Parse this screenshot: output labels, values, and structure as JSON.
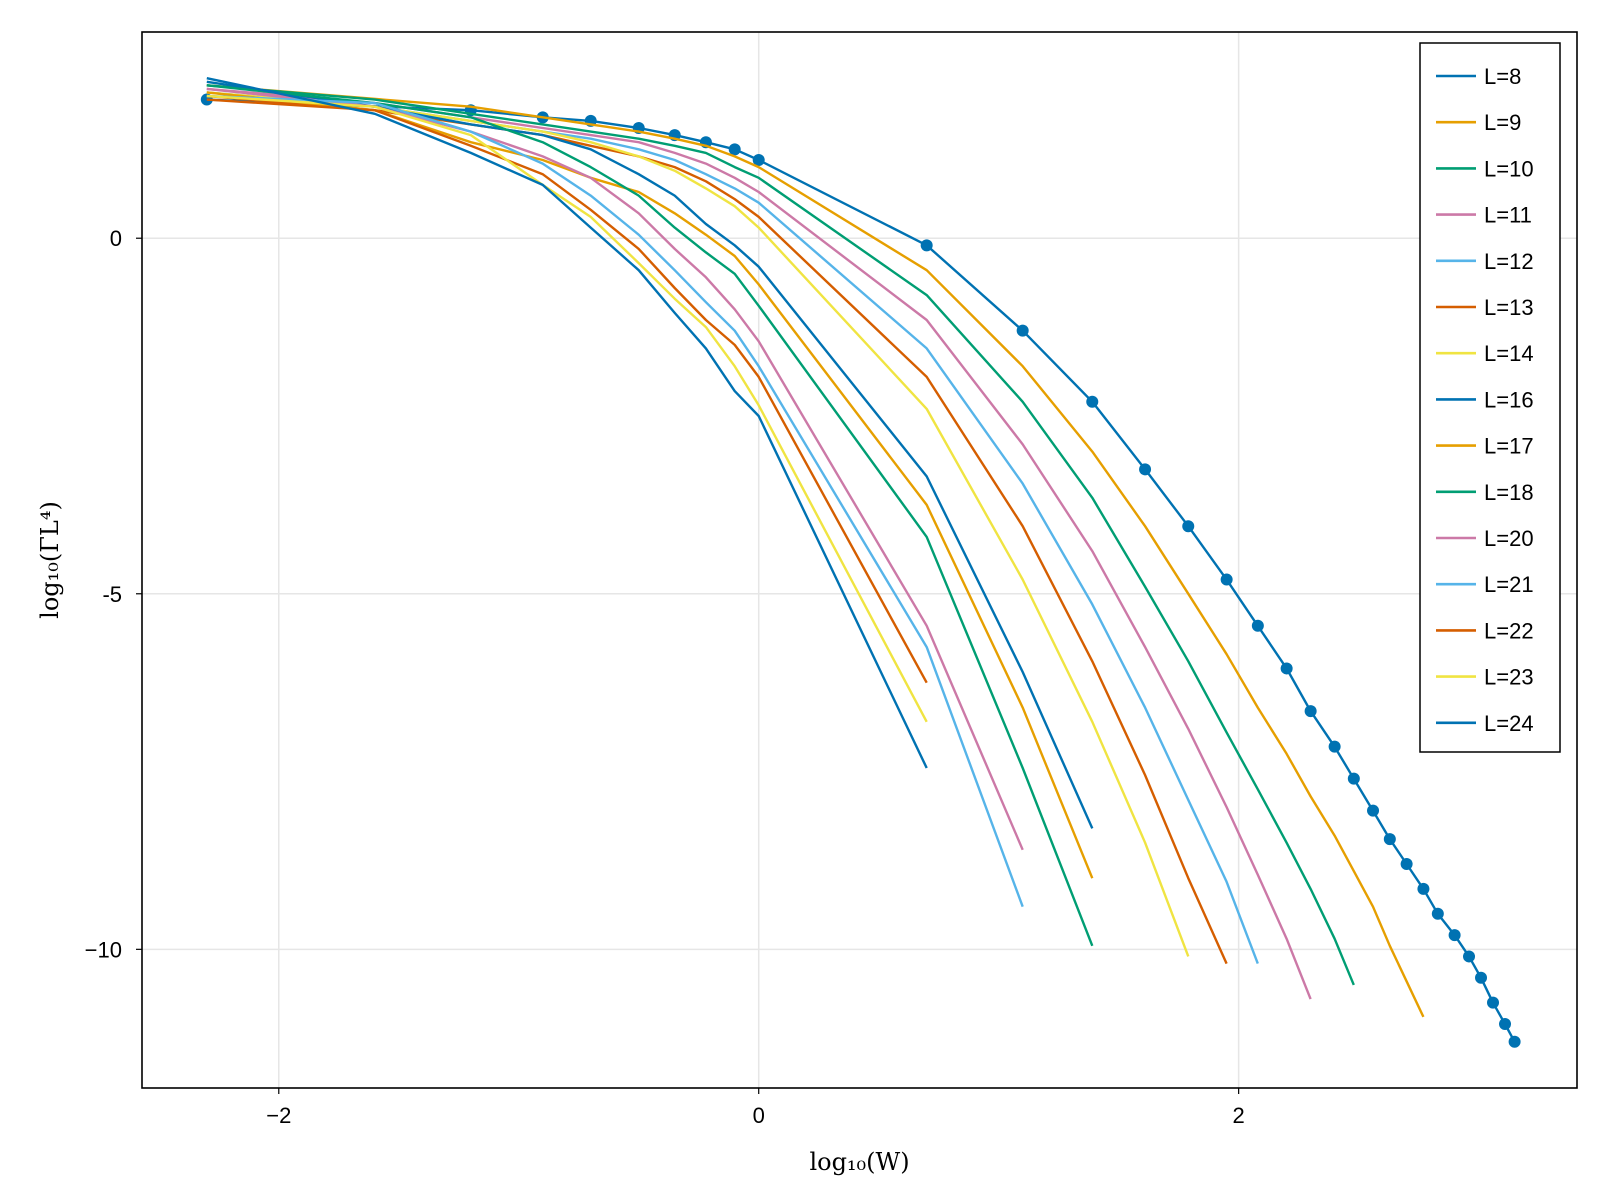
{
  "chart_data": {
    "type": "line",
    "title": "",
    "xlabel": "log₁₀(W)",
    "ylabel": "log₁₀(ΓL⁴)",
    "xlim": [
      -2.57,
      3.41
    ],
    "ylim": [
      -11.95,
      2.9
    ],
    "x_ticks": [
      {
        "value": -2,
        "label": "−2"
      },
      {
        "value": 0,
        "label": "0"
      },
      {
        "value": 2,
        "label": "2"
      }
    ],
    "y_ticks": [
      {
        "value": 0,
        "label": "0"
      },
      {
        "value": -5,
        "label": "-5"
      },
      {
        "value": -10,
        "label": "−10"
      }
    ],
    "grid": true,
    "legend_position": "top-right",
    "series": [
      {
        "name": "L=8",
        "color": "#0072B2",
        "markers": true,
        "x": [
          -2.3,
          -1.2,
          -0.9,
          -0.7,
          -0.5,
          -0.35,
          -0.22,
          -0.1,
          0.0,
          0.7,
          1.1,
          1.39,
          1.61,
          1.79,
          1.95,
          2.08,
          2.2,
          2.3,
          2.4,
          2.48,
          2.56,
          2.63,
          2.7,
          2.77,
          2.83,
          2.9,
          2.96,
          3.01,
          3.06,
          3.11,
          3.15
        ],
        "y": [
          1.95,
          1.8,
          1.7,
          1.65,
          1.55,
          1.45,
          1.35,
          1.25,
          1.1,
          -0.1,
          -1.3,
          -2.3,
          -3.25,
          -4.05,
          -4.8,
          -5.45,
          -6.05,
          -6.65,
          -7.15,
          -7.6,
          -8.05,
          -8.45,
          -8.8,
          -9.15,
          -9.5,
          -9.8,
          -10.1,
          -10.4,
          -10.75,
          -11.05,
          -11.3
        ]
      },
      {
        "name": "L=9",
        "color": "#E69F00",
        "markers": false,
        "x": [
          -2.3,
          -1.2,
          -0.9,
          -0.7,
          -0.5,
          -0.35,
          -0.22,
          -0.1,
          0.0,
          0.7,
          1.1,
          1.39,
          1.61,
          1.79,
          1.95,
          2.08,
          2.2,
          2.3,
          2.4,
          2.48,
          2.56,
          2.63,
          2.7,
          2.77
        ],
        "y": [
          2.15,
          1.85,
          1.7,
          1.6,
          1.5,
          1.4,
          1.3,
          1.15,
          1.0,
          -0.45,
          -1.8,
          -3.0,
          -4.05,
          -5.0,
          -5.85,
          -6.6,
          -7.25,
          -7.85,
          -8.4,
          -8.9,
          -9.4,
          -9.95,
          -10.45,
          -10.95
        ]
      },
      {
        "name": "L=10",
        "color": "#009E73",
        "markers": false,
        "x": [
          -2.3,
          -1.6,
          -1.2,
          -0.9,
          -0.7,
          -0.5,
          -0.35,
          -0.22,
          -0.1,
          0.0,
          0.7,
          1.1,
          1.39,
          1.61,
          1.79,
          1.95,
          2.08,
          2.2,
          2.3,
          2.4,
          2.48
        ],
        "y": [
          2.15,
          1.95,
          1.75,
          1.6,
          1.5,
          1.4,
          1.3,
          1.2,
          1.0,
          0.85,
          -0.8,
          -2.3,
          -3.65,
          -4.9,
          -5.95,
          -6.95,
          -7.75,
          -8.5,
          -9.15,
          -9.85,
          -10.5
        ]
      },
      {
        "name": "L=11",
        "color": "#CC79A7",
        "markers": false,
        "x": [
          -2.3,
          -1.6,
          -1.2,
          -0.9,
          -0.7,
          -0.5,
          -0.35,
          -0.22,
          -0.1,
          0.0,
          0.7,
          1.1,
          1.39,
          1.61,
          1.79,
          1.95,
          2.08,
          2.2,
          2.3
        ],
        "y": [
          2.1,
          1.9,
          1.7,
          1.55,
          1.45,
          1.35,
          1.2,
          1.05,
          0.85,
          0.65,
          -1.15,
          -2.9,
          -4.4,
          -5.75,
          -6.9,
          -8.0,
          -8.95,
          -9.85,
          -10.7
        ]
      },
      {
        "name": "L=12",
        "color": "#56B4E9",
        "markers": false,
        "x": [
          -2.3,
          -1.6,
          -1.2,
          -0.9,
          -0.7,
          -0.5,
          -0.35,
          -0.22,
          -0.1,
          0.0,
          0.7,
          1.1,
          1.39,
          1.61,
          1.79,
          1.95,
          2.08
        ],
        "y": [
          2.05,
          1.85,
          1.65,
          1.5,
          1.4,
          1.25,
          1.1,
          0.9,
          0.7,
          0.5,
          -1.55,
          -3.45,
          -5.15,
          -6.6,
          -7.9,
          -9.05,
          -10.2
        ]
      },
      {
        "name": "L=13",
        "color": "#D55E00",
        "markers": false,
        "x": [
          -2.3,
          -1.6,
          -1.2,
          -0.9,
          -0.7,
          -0.5,
          -0.35,
          -0.22,
          -0.1,
          0.0,
          0.7,
          1.1,
          1.39,
          1.61,
          1.79,
          1.95
        ],
        "y": [
          2.0,
          1.8,
          1.6,
          1.45,
          1.3,
          1.15,
          1.0,
          0.8,
          0.55,
          0.3,
          -1.95,
          -4.05,
          -5.95,
          -7.55,
          -9.0,
          -10.2
        ]
      },
      {
        "name": "L=14",
        "color": "#F0E442",
        "markers": false,
        "x": [
          -2.3,
          -1.6,
          -1.2,
          -0.9,
          -0.7,
          -0.5,
          -0.35,
          -0.22,
          -0.1,
          0.0,
          0.7,
          1.1,
          1.39,
          1.61,
          1.79
        ],
        "y": [
          2.05,
          1.85,
          1.65,
          1.5,
          1.35,
          1.15,
          0.95,
          0.7,
          0.45,
          0.15,
          -2.4,
          -4.8,
          -6.8,
          -8.5,
          -10.1
        ]
      },
      {
        "name": "L=16",
        "color": "#0072B2",
        "markers": false,
        "x": [
          -2.3,
          -1.6,
          -1.2,
          -0.9,
          -0.7,
          -0.5,
          -0.35,
          -0.22,
          -0.1,
          0.0,
          0.7,
          1.1,
          1.39
        ],
        "y": [
          2.2,
          1.85,
          1.6,
          1.45,
          1.25,
          0.9,
          0.6,
          0.2,
          -0.1,
          -0.4,
          -3.35,
          -6.1,
          -8.3
        ]
      },
      {
        "name": "L=17",
        "color": "#E69F00",
        "markers": false,
        "x": [
          -2.3,
          -1.6,
          -1.2,
          -0.9,
          -0.7,
          -0.5,
          -0.35,
          -0.22,
          -0.1,
          0.0,
          0.7,
          1.1,
          1.39
        ],
        "y": [
          2.05,
          1.8,
          1.35,
          1.1,
          0.85,
          0.65,
          0.35,
          0.05,
          -0.25,
          -0.65,
          -3.75,
          -6.6,
          -9.0
        ]
      },
      {
        "name": "L=18",
        "color": "#009E73",
        "markers": false,
        "x": [
          -2.3,
          -1.6,
          -1.2,
          -0.9,
          -0.7,
          -0.5,
          -0.35,
          -0.22,
          -0.1,
          0.0,
          0.7,
          1.1,
          1.39
        ],
        "y": [
          2.15,
          1.9,
          1.7,
          1.35,
          1.0,
          0.6,
          0.15,
          -0.2,
          -0.5,
          -0.95,
          -4.2,
          -7.45,
          -9.95
        ]
      },
      {
        "name": "L=20",
        "color": "#CC79A7",
        "markers": false,
        "x": [
          -2.3,
          -1.6,
          -1.2,
          -0.9,
          -0.7,
          -0.5,
          -0.35,
          -0.22,
          -0.1,
          0.0,
          0.7,
          1.1
        ],
        "y": [
          2.1,
          1.85,
          1.5,
          1.15,
          0.85,
          0.35,
          -0.15,
          -0.55,
          -1.0,
          -1.45,
          -5.45,
          -8.6
        ]
      },
      {
        "name": "L=21",
        "color": "#56B4E9",
        "markers": false,
        "x": [
          -2.3,
          -1.6,
          -1.2,
          -0.9,
          -0.7,
          -0.5,
          -0.35,
          -0.22,
          -0.1,
          0.0,
          0.7,
          1.1
        ],
        "y": [
          2.0,
          1.9,
          1.5,
          1.05,
          0.6,
          0.05,
          -0.45,
          -0.9,
          -1.3,
          -1.8,
          -5.75,
          -9.4
        ]
      },
      {
        "name": "L=22",
        "color": "#D55E00",
        "markers": false,
        "x": [
          -2.3,
          -1.6,
          -1.2,
          -0.9,
          -0.7,
          -0.5,
          -0.35,
          -0.22,
          -0.1,
          0.0,
          0.7
        ],
        "y": [
          1.95,
          1.8,
          1.3,
          0.9,
          0.4,
          -0.15,
          -0.7,
          -1.15,
          -1.5,
          -1.95,
          -6.25
        ]
      },
      {
        "name": "L=23",
        "color": "#F0E442",
        "markers": false,
        "x": [
          -2.3,
          -1.6,
          -1.2,
          -0.9,
          -0.7,
          -0.5,
          -0.35,
          -0.22,
          -0.1,
          0.0,
          0.7
        ],
        "y": [
          2.0,
          1.85,
          1.45,
          0.75,
          0.3,
          -0.35,
          -0.85,
          -1.25,
          -1.8,
          -2.35,
          -6.8
        ]
      },
      {
        "name": "L=24",
        "color": "#0072B2",
        "markers": false,
        "x": [
          -2.3,
          -1.6,
          -1.2,
          -0.9,
          -0.7,
          -0.5,
          -0.35,
          -0.22,
          -0.1,
          0.0,
          0.7
        ],
        "y": [
          2.25,
          1.75,
          1.2,
          0.75,
          0.15,
          -0.45,
          -1.05,
          -1.55,
          -2.15,
          -2.5,
          -7.45
        ]
      }
    ]
  }
}
